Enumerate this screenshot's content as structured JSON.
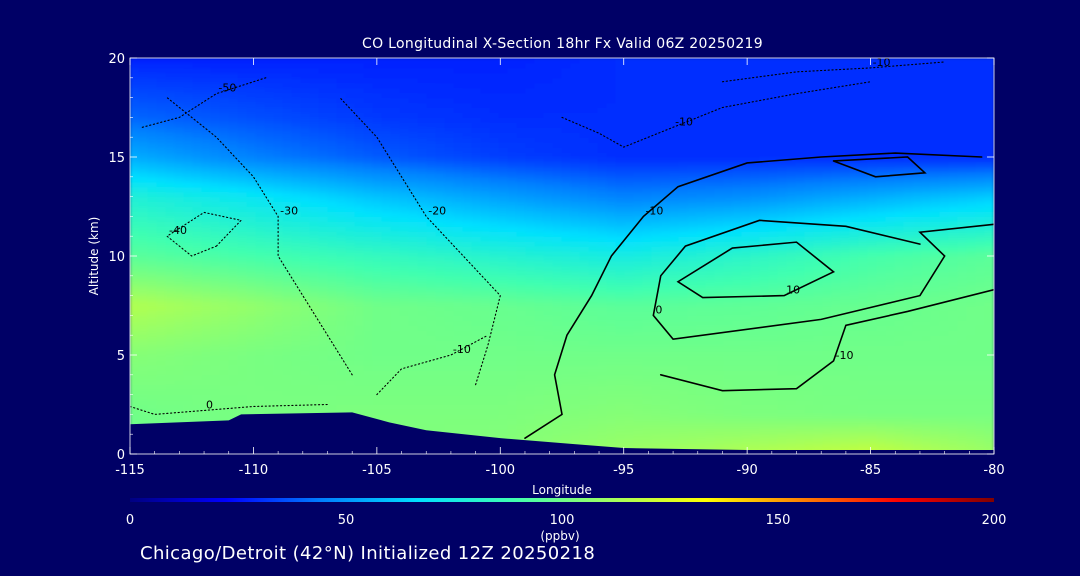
{
  "chart_data": {
    "type": "heatmap",
    "title": "CO Longitudinal X-Section 18hr  Fx Valid 06Z 20250219",
    "subtitle": "Chicago/Detroit (42°N) Initialized 12Z 20250218",
    "xlabel": "Longitude",
    "ylabel": "Altitude (km)",
    "xlim": [
      -115,
      -80
    ],
    "ylim": [
      0,
      20
    ],
    "x_ticks": [
      -115,
      -110,
      -105,
      -100,
      -95,
      -90,
      -85,
      -80
    ],
    "x_tick_labels": [
      "-115",
      "-110",
      "-105",
      "-100",
      "-95",
      "-90",
      "-85",
      "-80"
    ],
    "y_ticks": [
      0,
      5,
      10,
      15,
      20
    ],
    "y_tick_labels": [
      "0",
      "5",
      "10",
      "15",
      "20"
    ],
    "colorbar": {
      "label": "(ppbv)",
      "min": 0,
      "max": 200,
      "ticks": [
        0,
        50,
        100,
        150,
        200
      ],
      "tick_labels": [
        "0",
        "50",
        "100",
        "150",
        "200"
      ],
      "colors": [
        "#000080",
        "#0000ff",
        "#0080ff",
        "#00e0ff",
        "#40ffb0",
        "#a0ff60",
        "#ffff00",
        "#ff8000",
        "#ff0000",
        "#800000"
      ]
    },
    "field_levels": [
      {
        "z": 20,
        "co": [
          28,
          28,
          28,
          28,
          30,
          30,
          30,
          30
        ]
      },
      {
        "z": 17,
        "co": [
          40,
          36,
          32,
          30,
          30,
          30,
          30,
          30
        ]
      },
      {
        "z": 15,
        "co": [
          55,
          45,
          38,
          33,
          30,
          30,
          30,
          30
        ]
      },
      {
        "z": 13,
        "co": [
          78,
          70,
          60,
          52,
          45,
          48,
          55,
          62
        ]
      },
      {
        "z": 10,
        "co": [
          95,
          90,
          85,
          80,
          75,
          82,
          90,
          95
        ]
      },
      {
        "z": 7.5,
        "co": [
          115,
          108,
          100,
          98,
          95,
          96,
          98,
          100
        ]
      },
      {
        "z": 5,
        "co": [
          105,
          102,
          100,
          100,
          100,
          100,
          100,
          100
        ]
      },
      {
        "z": 2,
        "co": [
          100,
          102,
          103,
          103,
          105,
          103,
          102,
          102
        ]
      },
      {
        "z": 0,
        "co": [
          100,
          102,
          103,
          105,
          110,
          115,
          120,
          110
        ]
      }
    ],
    "terrain_km": [
      {
        "lon": -115,
        "z": 1.5
      },
      {
        "lon": -111,
        "z": 1.7
      },
      {
        "lon": -110.5,
        "z": 2.0
      },
      {
        "lon": -106,
        "z": 2.1
      },
      {
        "lon": -104.5,
        "z": 1.6
      },
      {
        "lon": -103,
        "z": 1.2
      },
      {
        "lon": -100,
        "z": 0.8
      },
      {
        "lon": -97,
        "z": 0.5
      },
      {
        "lon": -95,
        "z": 0.3
      },
      {
        "lon": -90,
        "z": 0.2
      },
      {
        "lon": -85,
        "z": 0.2
      },
      {
        "lon": -80,
        "z": 0.2
      }
    ],
    "contours": [
      {
        "label": "-10",
        "style": "solid",
        "points": [
          [
            -99,
            0.8
          ],
          [
            -97.5,
            2
          ],
          [
            -97.8,
            4
          ],
          [
            -97.3,
            6
          ],
          [
            -96.3,
            8
          ],
          [
            -95.5,
            10
          ],
          [
            -94.2,
            12
          ],
          [
            -92.8,
            13.5
          ],
          [
            -90,
            14.7
          ],
          [
            -87,
            15
          ],
          [
            -84,
            15.2
          ],
          [
            -80.5,
            15
          ]
        ]
      },
      {
        "label": "-10",
        "style": "solid",
        "points": [
          [
            -93.5,
            4
          ],
          [
            -91,
            3.2
          ],
          [
            -88,
            3.3
          ],
          [
            -86.5,
            4.7
          ],
          [
            -86,
            6.5
          ],
          [
            -83.5,
            7.2
          ],
          [
            -80,
            8.3
          ]
        ]
      },
      {
        "label": "10",
        "style": "solid",
        "points": [
          [
            -90.6,
            10.4
          ],
          [
            -88,
            10.7
          ],
          [
            -86.5,
            9.2
          ],
          [
            -88.5,
            8
          ],
          [
            -91.8,
            7.9
          ],
          [
            -92.8,
            8.7
          ],
          [
            -90.6,
            10.4
          ]
        ]
      },
      {
        "label": "",
        "style": "solid",
        "points": [
          [
            -86.5,
            14.8
          ],
          [
            -83.5,
            15
          ],
          [
            -82.8,
            14.2
          ],
          [
            -84.8,
            14
          ],
          [
            -86.5,
            14.8
          ]
        ]
      },
      {
        "label": "0",
        "style": "solid",
        "points": [
          [
            -80,
            11.6
          ],
          [
            -83,
            11.2
          ],
          [
            -82,
            10
          ],
          [
            -83,
            8
          ],
          [
            -87,
            6.8
          ],
          [
            -93,
            5.8
          ],
          [
            -93.8,
            7
          ],
          [
            -93.5,
            9
          ],
          [
            -92.5,
            10.5
          ],
          [
            -89.5,
            11.8
          ],
          [
            -86,
            11.5
          ],
          [
            -83,
            10.6
          ]
        ]
      },
      {
        "label": "-20",
        "style": "dotted",
        "points": [
          [
            -101,
            3.5
          ],
          [
            -100.5,
            5.5
          ],
          [
            -100,
            8
          ],
          [
            -101.5,
            10
          ],
          [
            -103,
            12
          ],
          [
            -104,
            14
          ],
          [
            -105,
            16
          ],
          [
            -106.5,
            18
          ]
        ]
      },
      {
        "label": "-30",
        "style": "dotted",
        "points": [
          [
            -106,
            4
          ],
          [
            -107,
            6
          ],
          [
            -108,
            8
          ],
          [
            -109,
            10
          ],
          [
            -109,
            12
          ],
          [
            -110,
            14
          ],
          [
            -111.5,
            16
          ],
          [
            -113.5,
            18
          ]
        ]
      },
      {
        "label": "-40",
        "style": "dotted",
        "points": [
          [
            -111.5,
            10.5
          ],
          [
            -110.5,
            11.8
          ],
          [
            -112,
            12.2
          ],
          [
            -113.5,
            11
          ],
          [
            -112.5,
            10
          ],
          [
            -111.5,
            10.5
          ]
        ]
      },
      {
        "label": "-50",
        "style": "dotted",
        "points": [
          [
            -114.5,
            16.5
          ],
          [
            -113,
            17
          ],
          [
            -111.5,
            18.2
          ],
          [
            -109.5,
            19
          ]
        ]
      },
      {
        "label": "-10",
        "style": "dotted",
        "points": [
          [
            -105,
            3
          ],
          [
            -104,
            4.3
          ],
          [
            -102,
            5
          ],
          [
            -100.5,
            6
          ]
        ]
      },
      {
        "label": "0",
        "style": "dotted",
        "points": [
          [
            -115,
            2.4
          ],
          [
            -114,
            2
          ],
          [
            -112,
            2.2
          ],
          [
            -110,
            2.4
          ],
          [
            -107,
            2.5
          ]
        ]
      },
      {
        "label": "-10",
        "style": "dotted",
        "points": [
          [
            -97.5,
            17
          ],
          [
            -96,
            16.2
          ],
          [
            -95,
            15.5
          ],
          [
            -93,
            16.5
          ],
          [
            -91,
            17.5
          ],
          [
            -88,
            18.2
          ],
          [
            -85,
            18.8
          ]
        ]
      },
      {
        "label": "-10",
        "style": "dotted",
        "points": [
          [
            -91,
            18.8
          ],
          [
            -88,
            19.3
          ],
          [
            -85,
            19.5
          ],
          [
            -82,
            19.8
          ]
        ]
      }
    ]
  }
}
